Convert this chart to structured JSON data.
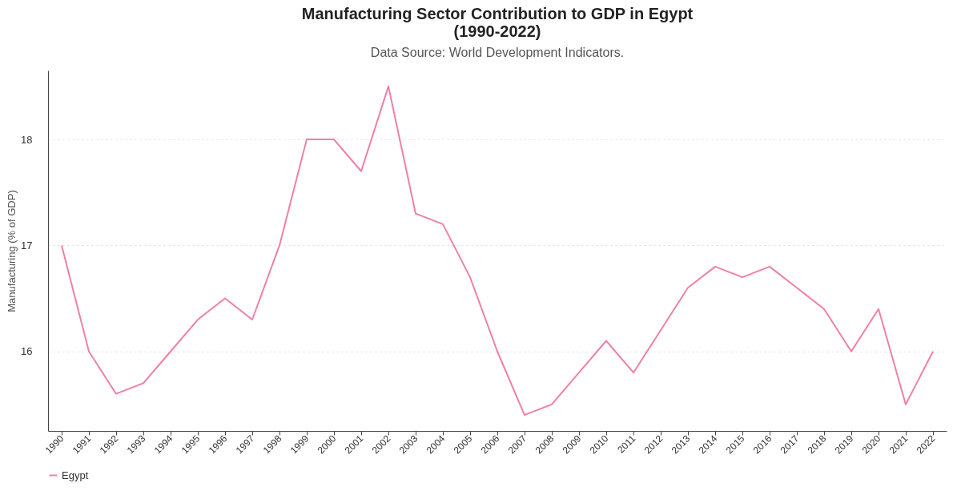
{
  "chart_data": {
    "type": "line",
    "title": "Manufacturing Sector Contribution to GDP in Egypt\n(1990-2022)",
    "subtitle": "Data Source: World Development Indicators.",
    "ylabel": "Manufacturing (% of GDP)",
    "categories": [
      "1990",
      "1991",
      "1992",
      "1993",
      "1994",
      "1995",
      "1996",
      "1997",
      "1998",
      "1999",
      "2000",
      "2001",
      "2002",
      "2003",
      "2004",
      "2005",
      "2006",
      "2007",
      "2008",
      "2009",
      "2010",
      "2011",
      "2012",
      "2013",
      "2014",
      "2015",
      "2016",
      "2017",
      "2018",
      "2019",
      "2020",
      "2021",
      "2022"
    ],
    "series": [
      {
        "name": "Egypt",
        "color": "#f07fa8",
        "values": [
          17.0,
          16.0,
          15.6,
          15.7,
          16.0,
          16.3,
          16.5,
          16.3,
          17.0,
          18.0,
          18.0,
          17.7,
          18.5,
          17.3,
          17.2,
          16.7,
          16.0,
          15.4,
          15.5,
          15.8,
          16.1,
          15.8,
          16.2,
          16.6,
          16.8,
          16.7,
          16.8,
          16.6,
          16.4,
          16.0,
          16.4,
          15.5,
          16.0
        ]
      }
    ],
    "ylim": [
      15.25,
      18.65
    ],
    "yticks": [
      16,
      17,
      18
    ],
    "grid": "y",
    "legend": "bottom",
    "marker": "none",
    "line_style": "solid"
  }
}
